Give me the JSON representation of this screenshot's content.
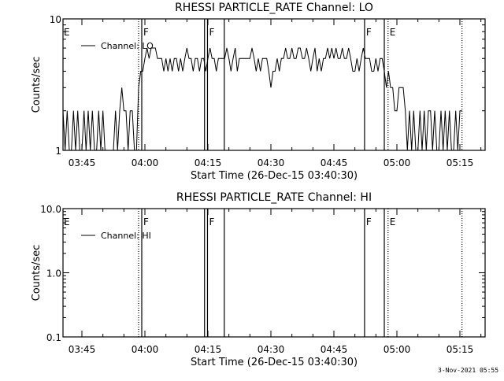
{
  "chart_data": [
    {
      "type": "line",
      "title": "RHESSI PARTICLE_RATE Channel: LO",
      "xlabel": "Start Time (26-Dec-15 03:40:30)",
      "ylabel": "Counts/sec",
      "yscale": "log",
      "ylim": [
        1,
        10
      ],
      "ytick_labels": [
        "1",
        "10"
      ],
      "xlim_minutes": [
        0,
        100.5
      ],
      "xticks": [
        {
          "min": 4.5,
          "label": "03:45"
        },
        {
          "min": 19.5,
          "label": "04:00"
        },
        {
          "min": 34.5,
          "label": "04:15"
        },
        {
          "min": 49.5,
          "label": "04:30"
        },
        {
          "min": 64.5,
          "label": "04:45"
        },
        {
          "min": 79.5,
          "label": "05:00"
        },
        {
          "min": 94.5,
          "label": "05:15"
        }
      ],
      "legend": {
        "label": "Channel: LO",
        "placement": "top-left"
      },
      "series": [
        {
          "name": "Channel: LO",
          "start_min": 0,
          "step_min": 0.5,
          "values": [
            2,
            1,
            2,
            1,
            1,
            2,
            1,
            2,
            1,
            1,
            2,
            1,
            2,
            1,
            2,
            1,
            1,
            2,
            1,
            2,
            1,
            1,
            1,
            1,
            1,
            2,
            1,
            2,
            3,
            2,
            2,
            1,
            2,
            2,
            1,
            1,
            3,
            4,
            4,
            5,
            6,
            5,
            6,
            6,
            6,
            5,
            5,
            5,
            4,
            5,
            4,
            5,
            4,
            5,
            5,
            4,
            5,
            4,
            5,
            6,
            5,
            5,
            4,
            5,
            5,
            4,
            5,
            5,
            4,
            5,
            6,
            5,
            5,
            4,
            5,
            5,
            5,
            5,
            6,
            5,
            4,
            5,
            6,
            4,
            5,
            5,
            5,
            5,
            5,
            5,
            6,
            5,
            4,
            5,
            4,
            5,
            5,
            5,
            4,
            3,
            4,
            4,
            5,
            4,
            5,
            5,
            6,
            5,
            5,
            6,
            5,
            5,
            6,
            6,
            5,
            5,
            6,
            5,
            4,
            5,
            6,
            4,
            5,
            4,
            5,
            5,
            6,
            5,
            6,
            5,
            6,
            5,
            5,
            6,
            5,
            5,
            6,
            5,
            4,
            4,
            5,
            4,
            5,
            6,
            5,
            5,
            5,
            4,
            4,
            5,
            4,
            5,
            5,
            4,
            3,
            4,
            3,
            3,
            2,
            2,
            3,
            3,
            3,
            2,
            1,
            2,
            1,
            2,
            1,
            1,
            2,
            1,
            2,
            1,
            2,
            2,
            1,
            2,
            1,
            1,
            2,
            1,
            2,
            1,
            2,
            1,
            1,
            2,
            1,
            2,
            2
          ]
        }
      ],
      "flag_lines": [
        {
          "min": 18.0,
          "style": "dotted"
        },
        {
          "min": 18.75,
          "style": "solid",
          "label": "F"
        },
        {
          "min": 33.7,
          "style": "solid"
        },
        {
          "min": 34.4,
          "style": "solid",
          "label": "F"
        },
        {
          "min": 38.4,
          "style": "solid"
        },
        {
          "min": 71.8,
          "style": "solid",
          "label": "F"
        },
        {
          "min": 76.5,
          "style": "solid"
        },
        {
          "min": 77.4,
          "style": "dotted",
          "label": "E"
        },
        {
          "min": 95.0,
          "style": "dotted"
        }
      ],
      "left_flag_label": "E"
    },
    {
      "type": "line",
      "title": "RHESSI PARTICLE_RATE Channel: HI",
      "xlabel": "Start Time (26-Dec-15 03:40:30)",
      "ylabel": "Counts/sec",
      "yscale": "log",
      "ylim": [
        0.1,
        10
      ],
      "ytick_labels": [
        "0.1",
        "1.0",
        "10.0"
      ],
      "xlim_minutes": [
        0,
        100.5
      ],
      "xticks": [
        {
          "min": 4.5,
          "label": "03:45"
        },
        {
          "min": 19.5,
          "label": "04:00"
        },
        {
          "min": 34.5,
          "label": "04:15"
        },
        {
          "min": 49.5,
          "label": "04:30"
        },
        {
          "min": 64.5,
          "label": "04:45"
        },
        {
          "min": 79.5,
          "label": "05:00"
        },
        {
          "min": 94.5,
          "label": "05:15"
        }
      ],
      "legend": {
        "label": "Channel: HI",
        "placement": "top-left"
      },
      "series": [
        {
          "name": "Channel: HI",
          "start_min": 0,
          "step_min": 0.5,
          "values": []
        }
      ],
      "flag_lines": [
        {
          "min": 18.0,
          "style": "dotted"
        },
        {
          "min": 18.75,
          "style": "solid",
          "label": "F"
        },
        {
          "min": 33.7,
          "style": "solid"
        },
        {
          "min": 34.4,
          "style": "solid",
          "label": "F"
        },
        {
          "min": 38.4,
          "style": "solid"
        },
        {
          "min": 71.8,
          "style": "solid",
          "label": "F"
        },
        {
          "min": 76.5,
          "style": "solid"
        },
        {
          "min": 77.4,
          "style": "dotted",
          "label": "E"
        },
        {
          "min": 95.0,
          "style": "dotted"
        }
      ],
      "left_flag_label": "E"
    }
  ],
  "timestamp": "3-Nov-2021 05:55"
}
